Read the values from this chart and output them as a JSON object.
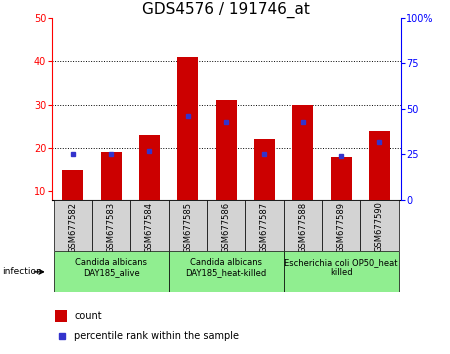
{
  "title": "GDS4576 / 191746_at",
  "samples": [
    "GSM677582",
    "GSM677583",
    "GSM677584",
    "GSM677585",
    "GSM677586",
    "GSM677587",
    "GSM677588",
    "GSM677589",
    "GSM677590"
  ],
  "count_values": [
    15,
    19,
    23,
    41,
    31,
    22,
    30,
    18,
    24
  ],
  "percentile_values": [
    25,
    25,
    27,
    46,
    43,
    25,
    43,
    24,
    32
  ],
  "ylim_left": [
    8,
    50
  ],
  "ylim_right": [
    0,
    100
  ],
  "yticks_left": [
    10,
    20,
    30,
    40,
    50
  ],
  "yticks_right": [
    0,
    25,
    50,
    75,
    100
  ],
  "ytick_labels_right": [
    "0",
    "25",
    "50",
    "75",
    "100%"
  ],
  "bar_color": "#cc0000",
  "dot_color": "#3333cc",
  "bg_color_samples": "#d3d3d3",
  "groups": [
    {
      "label": "Candida albicans\nDAY185_alive",
      "samples": [
        0,
        1,
        2
      ]
    },
    {
      "label": "Candida albicans\nDAY185_heat-killed",
      "samples": [
        3,
        4,
        5
      ]
    },
    {
      "label": "Escherichia coli OP50_heat\nkilled",
      "samples": [
        6,
        7,
        8
      ]
    }
  ],
  "infection_label": "infection",
  "legend_count_label": "count",
  "legend_percentile_label": "percentile rank within the sample",
  "title_fontsize": 11,
  "tick_fontsize": 7,
  "sample_fontsize": 6,
  "group_fontsize": 6
}
